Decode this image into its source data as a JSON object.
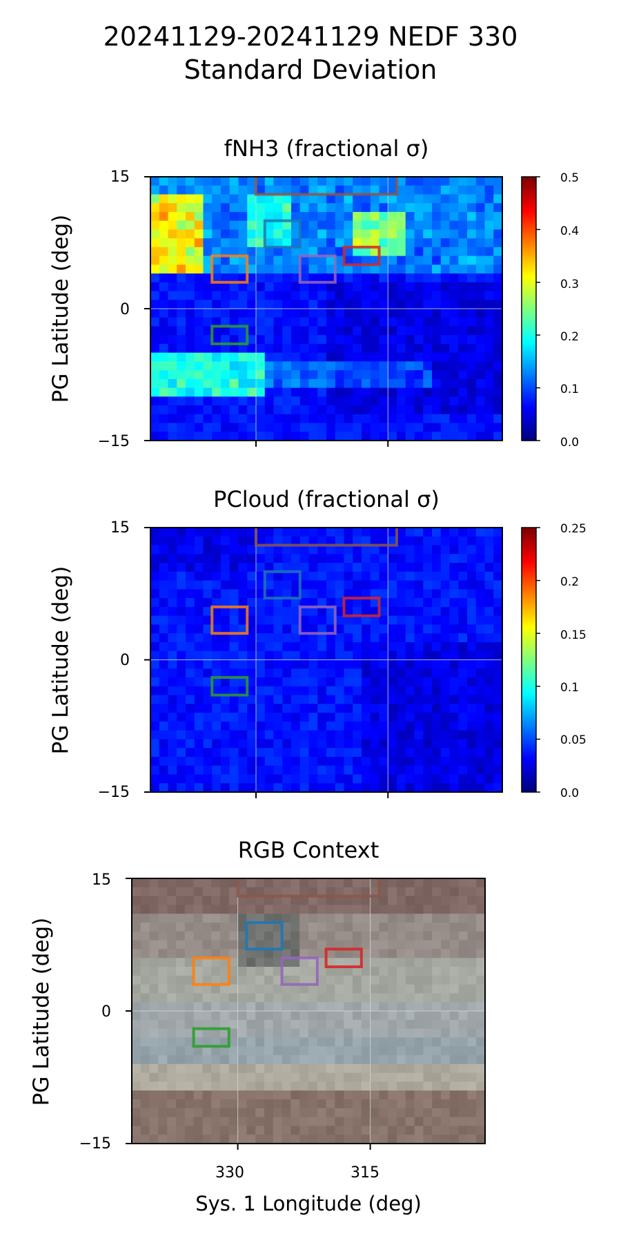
{
  "figure": {
    "title_line1": "20241129-20241129 NEDF 330",
    "title_line2": "Standard Deviation"
  },
  "panels": [
    {
      "key": "fnh3",
      "title": "fNH3 (fractional σ)",
      "ylabel": "PG Latitude (deg)",
      "yticks": [
        "15",
        "0",
        "−15"
      ],
      "colorbar": {
        "range": [
          0,
          0.5
        ],
        "ticks": [
          "0.0",
          "0.1",
          "0.2",
          "0.3",
          "0.4",
          "0.5"
        ]
      }
    },
    {
      "key": "pcloud",
      "title": "PCloud (fractional σ)",
      "ylabel": "PG Latitude (deg)",
      "yticks": [
        "15",
        "0",
        "−15"
      ],
      "colorbar": {
        "range": [
          0,
          0.25
        ],
        "ticks": [
          "0.0",
          "0.05",
          "0.1",
          "0.15",
          "0.2",
          "0.25"
        ]
      }
    },
    {
      "key": "rgb",
      "title": "RGB Context",
      "ylabel": "PG Latitude (deg)",
      "yticks": [
        "15",
        "0",
        "−15"
      ],
      "xlabel": "Sys. 1 Longitude (deg)",
      "xticks": [
        "330",
        "315"
      ]
    }
  ],
  "chart_data": [
    {
      "type": "heatmap",
      "title": "fNH3 (fractional σ)",
      "ylabel": "PG Latitude (deg)",
      "xlabel": "",
      "x_axis": "Sys. 1 Longitude (deg), decreasing to the right",
      "xlim": [
        342,
        302
      ],
      "ylim": [
        -15,
        15
      ],
      "yticks": [
        15,
        0,
        -15
      ],
      "xticks": [
        330,
        315
      ],
      "grid": true,
      "colormap": "jet",
      "vmin": 0,
      "vmax": 0.5,
      "features": [
        {
          "lon": [
            342,
            338
          ],
          "lat": [
            4,
            13
          ],
          "value": 0.3,
          "desc": "high sigma patch"
        },
        {
          "lon": [
            342,
            330
          ],
          "lat": [
            -10,
            -5
          ],
          "value": 0.22,
          "desc": "band of elevated sigma"
        },
        {
          "lon": [
            318,
            313
          ],
          "lat": [
            6,
            10
          ],
          "value": 0.2
        },
        {
          "background": 0.06
        }
      ]
    },
    {
      "type": "heatmap",
      "title": "PCloud (fractional σ)",
      "ylabel": "PG Latitude (deg)",
      "xlim": [
        342,
        302
      ],
      "ylim": [
        -15,
        15
      ],
      "yticks": [
        15,
        0,
        -15
      ],
      "xticks": [
        330,
        315
      ],
      "grid": true,
      "colormap": "jet",
      "vmin": 0,
      "vmax": 0.25,
      "features": [
        {
          "background": 0.03
        }
      ]
    },
    {
      "type": "image",
      "title": "RGB Context",
      "ylabel": "PG Latitude (deg)",
      "xlabel": "Sys. 1 Longitude (deg)",
      "xlim": [
        342,
        302
      ],
      "ylim": [
        -15,
        15
      ],
      "yticks": [
        15,
        0,
        -15
      ],
      "xticks": [
        330,
        315
      ]
    }
  ],
  "regions": [
    {
      "color": "#8c564b",
      "lon": [
        330,
        314
      ],
      "lat": [
        13,
        17
      ]
    },
    {
      "color": "#1f77b4",
      "lon": [
        329,
        325
      ],
      "lat": [
        7,
        10
      ]
    },
    {
      "color": "#ff7f0e",
      "lon": [
        335,
        331
      ],
      "lat": [
        3,
        6
      ]
    },
    {
      "color": "#9467bd",
      "lon": [
        325,
        321
      ],
      "lat": [
        3,
        6
      ]
    },
    {
      "color": "#d62728",
      "lon": [
        320,
        316
      ],
      "lat": [
        5,
        7
      ]
    },
    {
      "color": "#2ca02c",
      "lon": [
        335,
        331
      ],
      "lat": [
        -4,
        -2
      ]
    }
  ]
}
